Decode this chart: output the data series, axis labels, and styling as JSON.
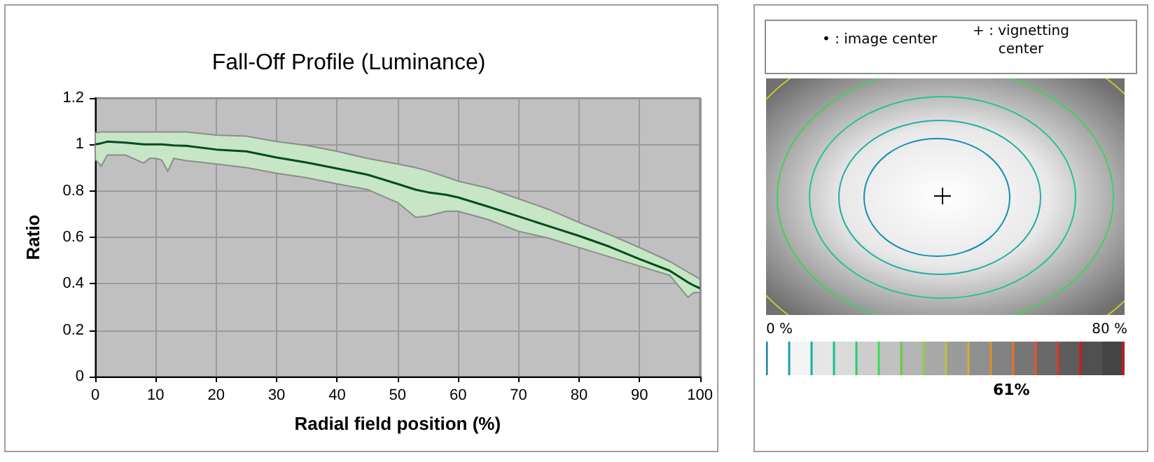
{
  "chart_data": [
    {
      "type": "line",
      "title": "Fall-Off Profile (Luminance)",
      "xlabel": "Radial field position (%)",
      "ylabel": "Ratio",
      "x": [
        0,
        1,
        2,
        5,
        8,
        9,
        10,
        11,
        12,
        13,
        15,
        20,
        25,
        30,
        35,
        40,
        45,
        50,
        53,
        55,
        58,
        60,
        65,
        70,
        75,
        80,
        85,
        90,
        95,
        98,
        99,
        100
      ],
      "series": [
        {
          "color": "#004d1a",
          "values": [
            1.0,
            1.005,
            1.012,
            1.008,
            1.0,
            1.0,
            1.0,
            1.0,
            0.998,
            0.996,
            0.994,
            0.978,
            0.97,
            0.944,
            0.922,
            0.896,
            0.87,
            0.83,
            0.805,
            0.794,
            0.783,
            0.772,
            0.732,
            0.69,
            0.648,
            0.606,
            0.56,
            0.506,
            0.456,
            0.406,
            0.392,
            0.38
          ],
          "lower": [
            0.936,
            0.906,
            0.954,
            0.954,
            0.92,
            0.94,
            0.94,
            0.932,
            0.884,
            0.94,
            0.93,
            0.916,
            0.9,
            0.876,
            0.856,
            0.83,
            0.806,
            0.75,
            0.686,
            0.692,
            0.712,
            0.712,
            0.676,
            0.626,
            0.596,
            0.556,
            0.516,
            0.476,
            0.436,
            0.342,
            0.362,
            0.362
          ],
          "upper": [
            1.05,
            1.054,
            1.054,
            1.054,
            1.054,
            1.054,
            1.054,
            1.054,
            1.054,
            1.054,
            1.054,
            1.04,
            1.036,
            1.012,
            0.996,
            0.97,
            0.94,
            0.916,
            0.9,
            0.886,
            0.86,
            0.842,
            0.812,
            0.766,
            0.72,
            0.664,
            0.612,
            0.556,
            0.496,
            0.45,
            0.435,
            0.42
          ]
        }
      ],
      "xlim": [
        0,
        100
      ],
      "xticks": [
        0,
        10,
        20,
        30,
        40,
        50,
        60,
        70,
        80,
        90,
        100
      ],
      "ylim": [
        0,
        1.2
      ],
      "yticks": [
        0,
        0.2,
        0.4,
        0.6,
        0.8,
        1,
        1.2
      ],
      "grid": true,
      "marker": "none",
      "line_style": "solid"
    },
    {
      "type": "other",
      "annotations": [
        "• : image center",
        "+ : vignetting center",
        "0 %",
        "80 %",
        "61%"
      ]
    }
  ]
}
